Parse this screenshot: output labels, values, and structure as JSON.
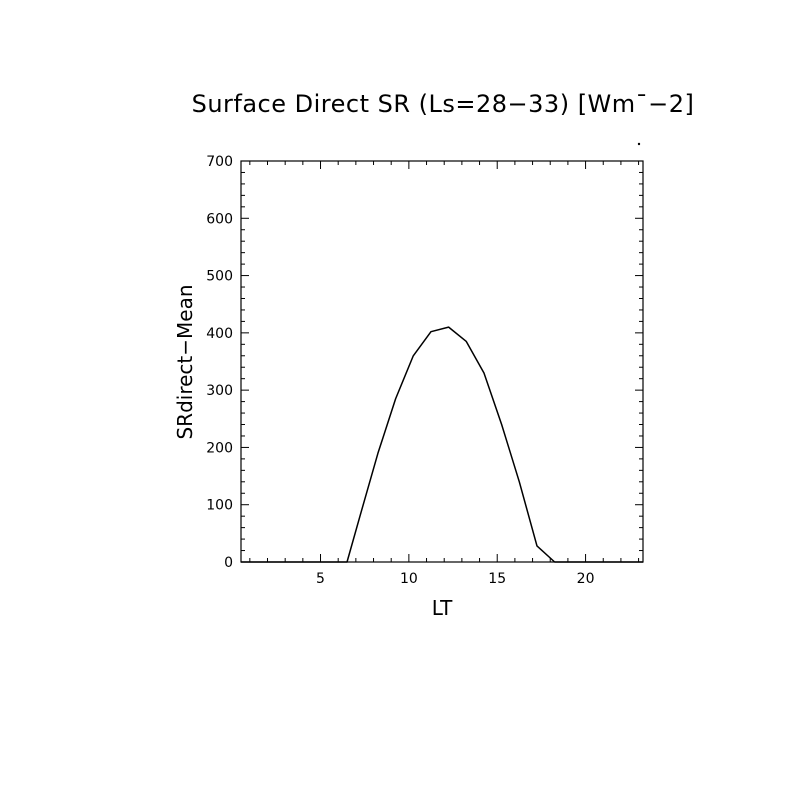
{
  "chart_data": {
    "type": "line",
    "title": "Surface Direct SR (Ls=28−33) [Wm¯−2]",
    "xlabel": "LT",
    "ylabel": "SRdirect−Mean",
    "xlim": [
      0.5,
      23.25
    ],
    "ylim": [
      0,
      700
    ],
    "xticks": [
      5,
      10,
      15,
      20
    ],
    "yticks": [
      0,
      100,
      200,
      300,
      400,
      500,
      600,
      700
    ],
    "grid": false,
    "series": [
      {
        "x": [
          0.5,
          6.5,
          7.25,
          8.25,
          9.25,
          10.25,
          11.25,
          12.25,
          13.25,
          14.25,
          15.25,
          16.25,
          17.25,
          18.25,
          23.25
        ],
        "y": [
          0,
          0,
          82,
          190,
          285,
          360,
          402,
          410,
          385,
          330,
          240,
          140,
          28,
          0,
          0
        ]
      }
    ],
    "color": "#000000"
  }
}
